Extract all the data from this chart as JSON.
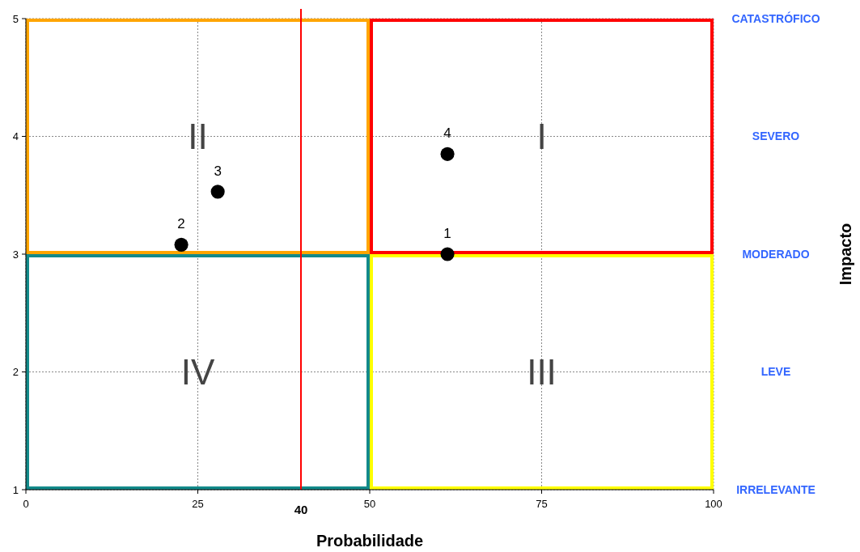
{
  "chart_data": {
    "type": "scatter",
    "xlabel": "Probabilidade",
    "x": [
      61.3,
      22.6,
      27.9,
      61.3
    ],
    "values": [
      3.0,
      3.08,
      3.53,
      3.85
    ],
    "color": "#000000",
    "marker": "circle",
    "xlim": [
      0,
      100
    ],
    "xticks": [
      0,
      25,
      50,
      75,
      100
    ],
    "ylim": [
      1,
      5
    ],
    "yticks": [
      1,
      2,
      3,
      4,
      5
    ],
    "grid": true,
    "ref_lines": [
      {
        "axis": "x",
        "value": 40,
        "label": "40",
        "color": "#ff0000"
      }
    ],
    "annotations": [
      {
        "text": "1",
        "x": 61.3,
        "y": 3.0
      },
      {
        "text": "2",
        "x": 22.6,
        "y": 3.08
      },
      {
        "text": "3",
        "x": 27.9,
        "y": 3.53
      },
      {
        "text": "4",
        "x": 61.3,
        "y": 3.85
      },
      "I",
      "II",
      "III",
      "IV",
      "IRRELEVANTE",
      "LEVE",
      "MODERADO",
      "SEVERO",
      "CATASTRÓFICO",
      "Impacto"
    ]
  }
}
